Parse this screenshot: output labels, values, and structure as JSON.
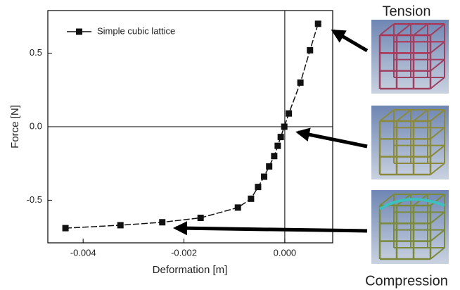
{
  "chart_data": {
    "type": "line",
    "x_label": "Deformation [m]",
    "y_label": "Force [N]",
    "annotations": [
      "Tension",
      "Compression"
    ],
    "series": [
      {
        "name": "Simple cubic lattice",
        "color": "#111111",
        "x": [
          -0.00435,
          -0.00326,
          -0.00243,
          -0.00167,
          -0.00093,
          -0.00067,
          -0.00053,
          -0.00041,
          -0.00031,
          -0.00021,
          -0.00014,
          -8e-05,
          -1e-05,
          8e-05,
          0.00031,
          0.0005,
          0.00066
        ],
        "values": [
          -0.69,
          -0.67,
          -0.65,
          -0.62,
          -0.55,
          -0.49,
          -0.41,
          -0.34,
          -0.27,
          -0.2,
          -0.13,
          -0.07,
          0,
          0.09,
          0.3,
          0.52,
          0.7
        ]
      }
    ],
    "xlim": [
      -0.0047,
      0.00095
    ],
    "ylim": [
      -0.79,
      0.79
    ],
    "xticks": [
      {
        "value": -0.004,
        "label": "-0.004"
      },
      {
        "value": -0.002,
        "label": "-0.002"
      },
      {
        "value": 0,
        "label": "0.000"
      }
    ],
    "yticks": [
      -0.5,
      {
        "value": 0,
        "label": "0.0"
      },
      0.5
    ],
    "zero_lines": true,
    "legend": "upper-left",
    "marker": "square"
  }
}
